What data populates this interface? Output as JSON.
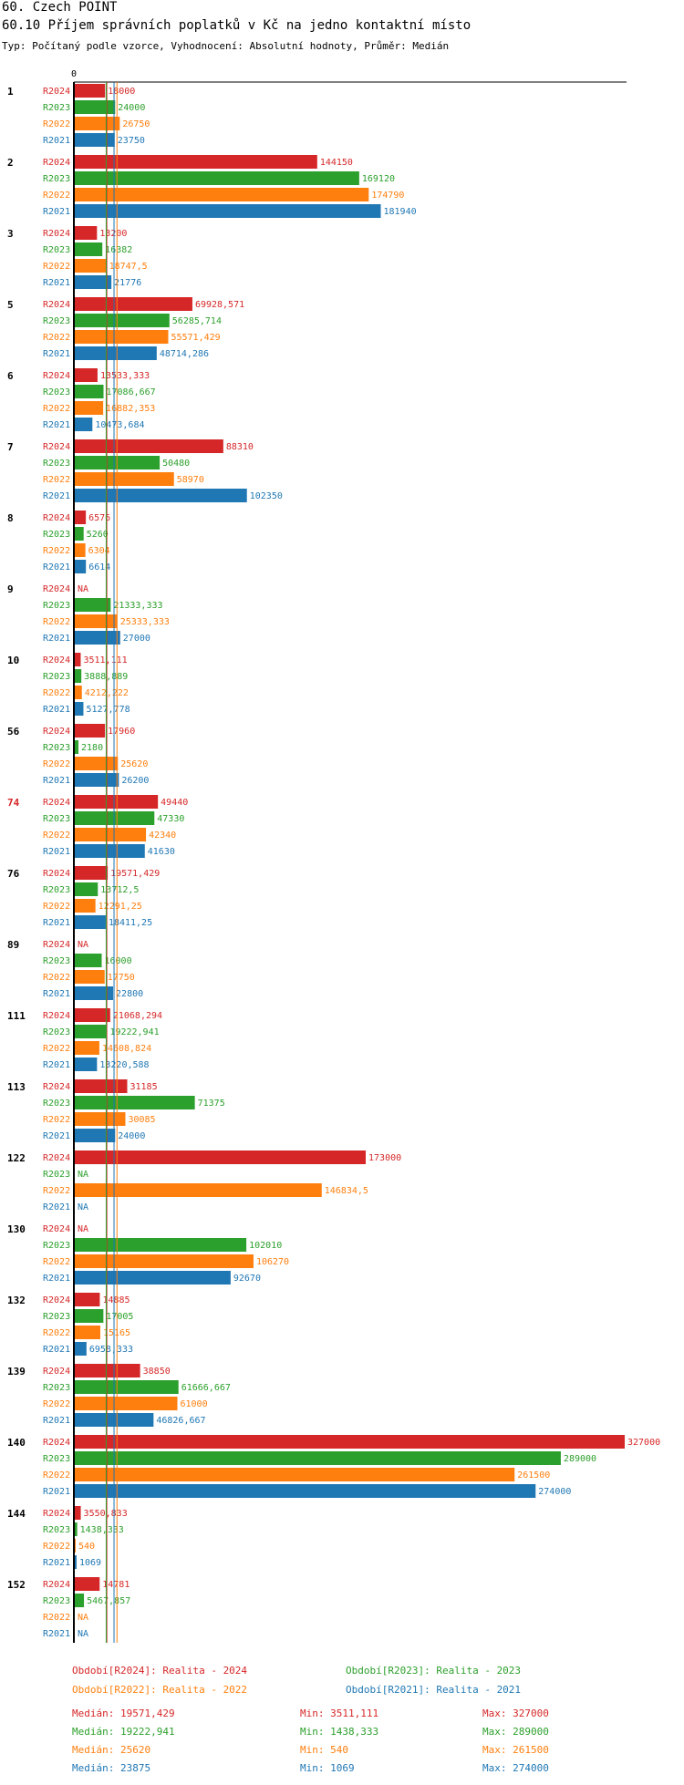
{
  "header": {
    "title": "60. Czech POINT",
    "subtitle": "60.10 Příjem správních poplatků v Kč na jedno kontaktní místo",
    "info": "Typ: Počítaný podle vzorce, Vyhodnocení: Absolutní hodnoty, Průměr: Medián"
  },
  "colors": {
    "R2024": "#d62728",
    "R2023": "#2ca02c",
    "R2022": "#ff7f0e",
    "R2021": "#1f77b4",
    "highlight": "#d62728"
  },
  "chart_data": {
    "type": "bar",
    "orientation": "horizontal",
    "axis_zero_label": "0",
    "xlim": [
      0,
      327000
    ],
    "periods": [
      "R2024",
      "R2023",
      "R2022",
      "R2021"
    ],
    "highlight_group": "74",
    "medians": {
      "R2024": 19571.429,
      "R2023": 19222.941,
      "R2022": 25620,
      "R2021": 23875
    },
    "groups": [
      {
        "id": "1",
        "values": [
          18000,
          24000,
          26750,
          23750
        ],
        "labels": [
          "18000",
          "24000",
          "26750",
          "23750"
        ]
      },
      {
        "id": "2",
        "values": [
          144150,
          169120,
          174790,
          181940
        ],
        "labels": [
          "144150",
          "169120",
          "174790",
          "181940"
        ]
      },
      {
        "id": "3",
        "values": [
          13200,
          16382,
          18747.5,
          21776
        ],
        "labels": [
          "13200",
          "16382",
          "18747,5",
          "21776"
        ]
      },
      {
        "id": "5",
        "values": [
          69928.571,
          56285.714,
          55571.429,
          48714.286
        ],
        "labels": [
          "69928,571",
          "56285,714",
          "55571,429",
          "48714,286"
        ]
      },
      {
        "id": "6",
        "values": [
          13533.333,
          17086.667,
          16882.353,
          10473.684
        ],
        "labels": [
          "13533,333",
          "17086,667",
          "16882,353",
          "10473,684"
        ]
      },
      {
        "id": "7",
        "values": [
          88310,
          50480,
          58970,
          102350
        ],
        "labels": [
          "88310",
          "50480",
          "58970",
          "102350"
        ]
      },
      {
        "id": "8",
        "values": [
          6576,
          5260,
          6304,
          6614
        ],
        "labels": [
          "6576",
          "5260",
          "6304",
          "6614"
        ]
      },
      {
        "id": "9",
        "values": [
          null,
          21333.333,
          25333.333,
          27000
        ],
        "labels": [
          "NA",
          "21333,333",
          "25333,333",
          "27000"
        ]
      },
      {
        "id": "10",
        "values": [
          3511.111,
          3888.889,
          4212.222,
          5127.778
        ],
        "labels": [
          "3511,111",
          "3888,889",
          "4212,222",
          "5127,778"
        ]
      },
      {
        "id": "56",
        "values": [
          17960,
          2180,
          25620,
          26200
        ],
        "labels": [
          "17960",
          "2180",
          "25620",
          "26200"
        ]
      },
      {
        "id": "74",
        "values": [
          49440,
          47330,
          42340,
          41630
        ],
        "labels": [
          "49440",
          "47330",
          "42340",
          "41630"
        ]
      },
      {
        "id": "76",
        "values": [
          19571.429,
          13712.5,
          12291.25,
          18411.25
        ],
        "labels": [
          "19571,429",
          "13712,5",
          "12291,25",
          "18411,25"
        ]
      },
      {
        "id": "89",
        "values": [
          null,
          16000,
          17750,
          22800
        ],
        "labels": [
          "NA",
          "16000",
          "17750",
          "22800"
        ]
      },
      {
        "id": "111",
        "values": [
          21068.294,
          19222.941,
          14608.824,
          13220.588
        ],
        "labels": [
          "21068,294",
          "19222,941",
          "14608,824",
          "13220,588"
        ]
      },
      {
        "id": "113",
        "values": [
          31185,
          71375,
          30085,
          24000
        ],
        "labels": [
          "31185",
          "71375",
          "30085",
          "24000"
        ]
      },
      {
        "id": "122",
        "values": [
          173000,
          null,
          146834.5,
          null
        ],
        "labels": [
          "173000",
          "NA",
          "146834,5",
          "NA"
        ]
      },
      {
        "id": "130",
        "values": [
          null,
          102010,
          106270,
          92670
        ],
        "labels": [
          "NA",
          "102010",
          "106270",
          "92670"
        ]
      },
      {
        "id": "132",
        "values": [
          14885,
          17005,
          15165,
          6958.333
        ],
        "labels": [
          "14885",
          "17005",
          "15165",
          "6958,333"
        ]
      },
      {
        "id": "139",
        "values": [
          38850,
          61666.667,
          61000,
          46826.667
        ],
        "labels": [
          "38850",
          "61666,667",
          "61000",
          "46826,667"
        ]
      },
      {
        "id": "140",
        "values": [
          327000,
          289000,
          261500,
          274000
        ],
        "labels": [
          "327000",
          "289000",
          "261500",
          "274000"
        ]
      },
      {
        "id": "144",
        "values": [
          3550.833,
          1438.333,
          540,
          1069
        ],
        "labels": [
          "3550,833",
          "1438,333",
          "540",
          "1069"
        ]
      },
      {
        "id": "152",
        "values": [
          14781,
          5467.857,
          null,
          null
        ],
        "labels": [
          "14781",
          "5467,857",
          "NA",
          "NA"
        ]
      }
    ]
  },
  "legend": [
    {
      "period": "R2024",
      "text": "Období[R2024]: Realita - 2024"
    },
    {
      "period": "R2023",
      "text": "Období[R2023]: Realita - 2023"
    },
    {
      "period": "R2022",
      "text": "Období[R2022]: Realita - 2022"
    },
    {
      "period": "R2021",
      "text": "Období[R2021]: Realita - 2021"
    }
  ],
  "stats": [
    {
      "period": "R2024",
      "median": "Medián: 19571,429",
      "min": "Min: 3511,111",
      "max": "Max: 327000"
    },
    {
      "period": "R2023",
      "median": "Medián: 19222,941",
      "min": "Min: 1438,333",
      "max": "Max: 289000"
    },
    {
      "period": "R2022",
      "median": "Medián: 25620",
      "min": "Min: 540",
      "max": "Max: 261500"
    },
    {
      "period": "R2021",
      "median": "Medián: 23875",
      "min": "Min: 1069",
      "max": "Max: 274000"
    }
  ]
}
